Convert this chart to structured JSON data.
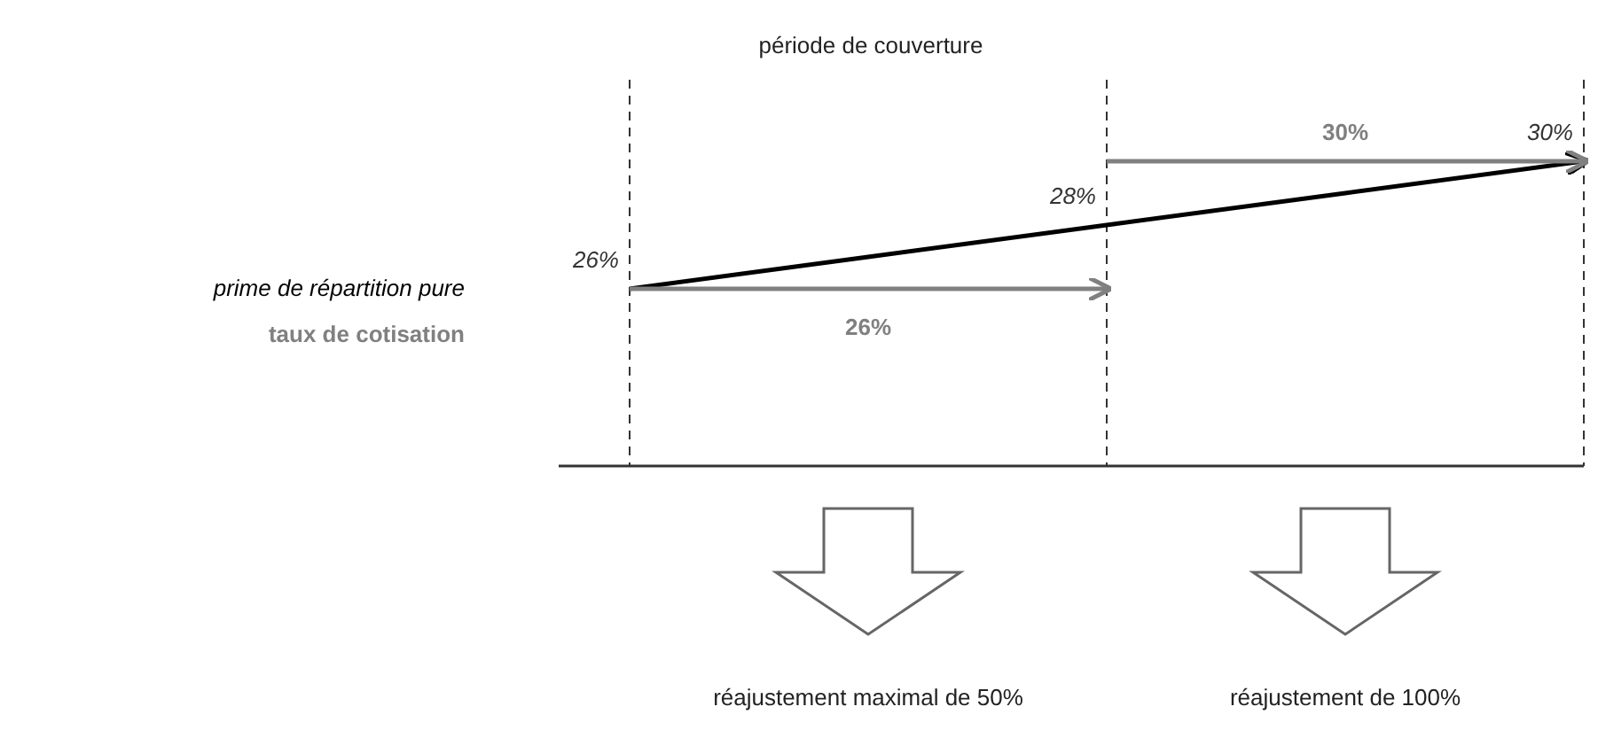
{
  "chart_data": {
    "type": "line",
    "title": "période de couverture",
    "categories": [
      null,
      null,
      null,
      null,
      null
    ],
    "series": [
      {
        "name": "prime de répartition pure",
        "color": "#000000",
        "values": [
          26,
          27,
          28,
          29,
          30
        ],
        "value_labels": [
          "26%",
          null,
          "28%",
          null,
          "30%"
        ]
      },
      {
        "name": "taux de cotisation",
        "color": "#808080",
        "values": [
          26,
          26,
          26,
          null,
          null
        ],
        "value_labels": [
          null,
          "26%",
          null,
          null,
          null
        ]
      },
      {
        "color": "#808080",
        "values": [
          null,
          null,
          30,
          30,
          30
        ],
        "value_labels": [
          null,
          null,
          null,
          "30%",
          null
        ]
      }
    ],
    "annotations": [
      "réajustement maximal de 50%",
      "réajustement de 100%"
    ],
    "grid": "x",
    "line_style": "solid",
    "marker": "none"
  }
}
